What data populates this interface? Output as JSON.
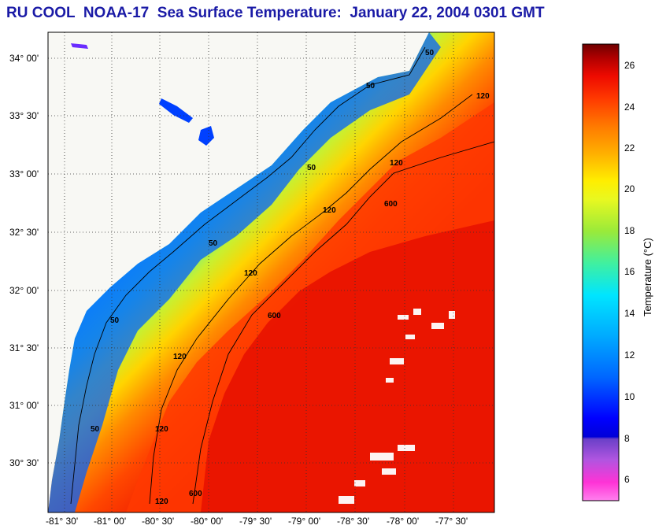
{
  "title": "RU COOL  NOAA-17  Sea Surface Temperature:  January 22, 2004 0301 GMT",
  "map": {
    "lat_labels": [
      "34° 00'",
      "33° 30'",
      "33° 00'",
      "32° 30'",
      "32° 00'",
      "31° 30'",
      "31° 00'",
      "30° 30'"
    ],
    "lon_labels": [
      "-81° 30'",
      "-81° 00'",
      "-80° 30'",
      "-80° 00'",
      "-79° 30'",
      "-79° 00'",
      "-78° 30'",
      "-78° 00'",
      "-77° 30'"
    ],
    "contour_labels": [
      "50",
      "50",
      "50",
      "50",
      "50",
      "50",
      "120",
      "120",
      "120",
      "120",
      "120",
      "120",
      "600",
      "600",
      "600",
      "120"
    ]
  },
  "colorbar": {
    "label": "Temperature (°C)",
    "ticks": [
      "26",
      "24",
      "22",
      "20",
      "18",
      "16",
      "14",
      "12",
      "10",
      "8",
      "6"
    ],
    "min": 5,
    "max": 27,
    "colors": {
      "dark_red": "#7a0000",
      "red": "#ff1a00",
      "orange": "#ff8a00",
      "yellow": "#ffff00",
      "green": "#7fe040",
      "cyan": "#00e5ff",
      "blue": "#0044ff",
      "deep_blue": "#0000e0",
      "purple": "#7a3cc8",
      "magenta": "#ff33d6",
      "land": "#f8f8f4"
    }
  }
}
